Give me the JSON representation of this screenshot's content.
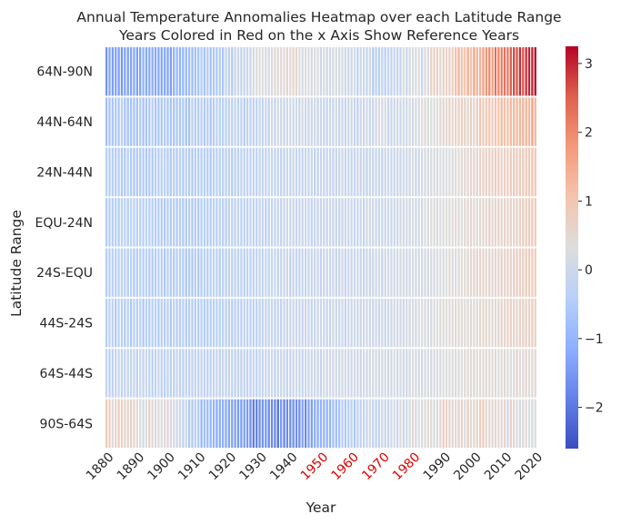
{
  "chart_data": {
    "type": "heatmap",
    "title_line1": "Annual Temperature Annomalies Heatmap over each Latitude Range",
    "title_line2": "Years Colored in Red on the x Axis Show Reference Years",
    "xlabel": "Year",
    "ylabel": "Latitude Range",
    "x_range": [
      1880,
      2020
    ],
    "x_ticks": [
      1880,
      1890,
      1900,
      1910,
      1920,
      1930,
      1940,
      1950,
      1960,
      1970,
      1980,
      1990,
      2000,
      2010,
      2020
    ],
    "reference_years": [
      1950,
      1960,
      1970,
      1980
    ],
    "reference_color": "#e00000",
    "rows": [
      "64N-90N",
      "44N-64N",
      "24N-44N",
      "EQU-24N",
      "24S-EQU",
      "44S-24S",
      "64S-44S",
      "90S-64S"
    ],
    "colorbar": {
      "min": -2.6,
      "max": 3.25,
      "ticks": [
        -2,
        -1,
        0,
        1,
        2,
        3
      ],
      "tick_labels": [
        "−2",
        "−1",
        "0",
        "1",
        "2",
        "3"
      ],
      "colormap": "coolwarm"
    },
    "row_profiles": {
      "64N-90N": {
        "anchors": [
          [
            1880,
            -1.6
          ],
          [
            1890,
            -1.3
          ],
          [
            1900,
            -1.2
          ],
          [
            1910,
            -0.8
          ],
          [
            1920,
            -0.4
          ],
          [
            1930,
            0.3
          ],
          [
            1940,
            0.5
          ],
          [
            1950,
            0.1
          ],
          [
            1960,
            0.0
          ],
          [
            1970,
            -0.3
          ],
          [
            1980,
            0.1
          ],
          [
            1990,
            0.6
          ],
          [
            2000,
            1.5
          ],
          [
            2010,
            2.4
          ],
          [
            2020,
            3.1
          ]
        ],
        "noise": 0.45
      },
      "44N-64N": {
        "anchors": [
          [
            1880,
            -0.7
          ],
          [
            1900,
            -0.6
          ],
          [
            1920,
            -0.4
          ],
          [
            1940,
            0.0
          ],
          [
            1960,
            -0.1
          ],
          [
            1980,
            0.2
          ],
          [
            2000,
            0.8
          ],
          [
            2020,
            1.5
          ]
        ],
        "noise": 0.3
      },
      "24N-44N": {
        "anchors": [
          [
            1880,
            -0.5
          ],
          [
            1910,
            -0.5
          ],
          [
            1940,
            -0.1
          ],
          [
            1970,
            -0.1
          ],
          [
            1990,
            0.3
          ],
          [
            2020,
            1.0
          ]
        ],
        "noise": 0.2
      },
      "EQU-24N": {
        "anchors": [
          [
            1880,
            -0.4
          ],
          [
            1910,
            -0.5
          ],
          [
            1940,
            -0.1
          ],
          [
            1970,
            0.0
          ],
          [
            1990,
            0.3
          ],
          [
            2020,
            0.8
          ]
        ],
        "noise": 0.2
      },
      "24S-EQU": {
        "anchors": [
          [
            1880,
            -0.4
          ],
          [
            1910,
            -0.5
          ],
          [
            1940,
            -0.1
          ],
          [
            1970,
            0.0
          ],
          [
            1990,
            0.3
          ],
          [
            2020,
            0.8
          ]
        ],
        "noise": 0.2
      },
      "44S-24S": {
        "anchors": [
          [
            1880,
            -0.4
          ],
          [
            1910,
            -0.5
          ],
          [
            1940,
            -0.1
          ],
          [
            1970,
            0.0
          ],
          [
            1990,
            0.3
          ],
          [
            2020,
            0.7
          ]
        ],
        "noise": 0.2
      },
      "64S-44S": {
        "anchors": [
          [
            1880,
            -0.2
          ],
          [
            1910,
            -0.3
          ],
          [
            1940,
            -0.1
          ],
          [
            1970,
            0.1
          ],
          [
            1990,
            0.3
          ],
          [
            2020,
            0.5
          ]
        ],
        "noise": 0.25
      },
      "90S-64S": {
        "anchors": [
          [
            1880,
            0.6
          ],
          [
            1900,
            0.3
          ],
          [
            1910,
            -0.6
          ],
          [
            1925,
            -1.6
          ],
          [
            1935,
            -1.9
          ],
          [
            1945,
            -1.5
          ],
          [
            1955,
            -0.6
          ],
          [
            1970,
            -0.1
          ],
          [
            1985,
            0.4
          ],
          [
            2000,
            0.6
          ],
          [
            2020,
            0.3
          ]
        ],
        "noise": 0.5
      }
    }
  }
}
